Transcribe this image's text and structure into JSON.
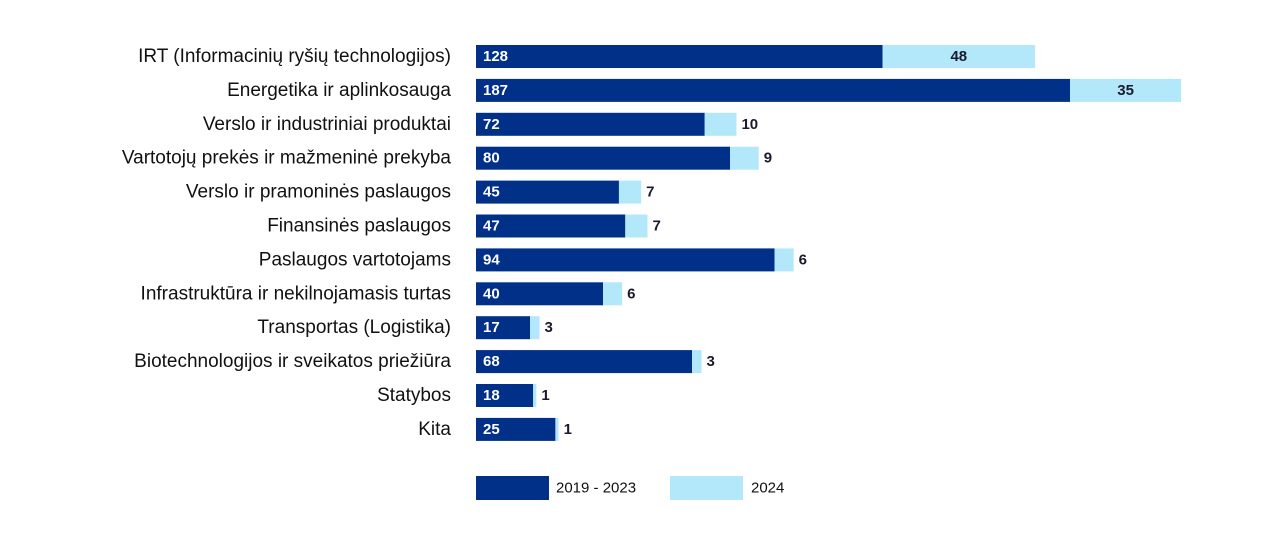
{
  "chart_data": {
    "type": "bar",
    "orientation": "horizontal",
    "stacked": true,
    "title": "",
    "xlabel": "",
    "ylabel": "",
    "grid": false,
    "legend_position": "bottom",
    "categories": [
      "IRT (Informacinių ryšių technologijos)",
      "Energetika ir aplinkosauga",
      "Verslo ir industriniai produktai",
      "Vartotojų prekės ir mažmeninė prekyba",
      "Verslo ir pramoninės paslaugos",
      "Finansinės paslaugos",
      "Paslaugos vartotojams",
      "Infrastruktūra ir nekilnojamasis turtas",
      "Transportas (Logistika)",
      "Biotechnologijos ir sveikatos priežiūra",
      "Statybos",
      "Kita"
    ],
    "series": [
      {
        "name": "2019 - 2023",
        "color": "#003087",
        "values": [
          128,
          187,
          72,
          80,
          45,
          47,
          94,
          40,
          17,
          68,
          18,
          25
        ]
      },
      {
        "name": "2024",
        "color": "#b3e8fb",
        "values": [
          48,
          35,
          10,
          9,
          7,
          7,
          6,
          6,
          3,
          3,
          1,
          1
        ]
      }
    ]
  }
}
